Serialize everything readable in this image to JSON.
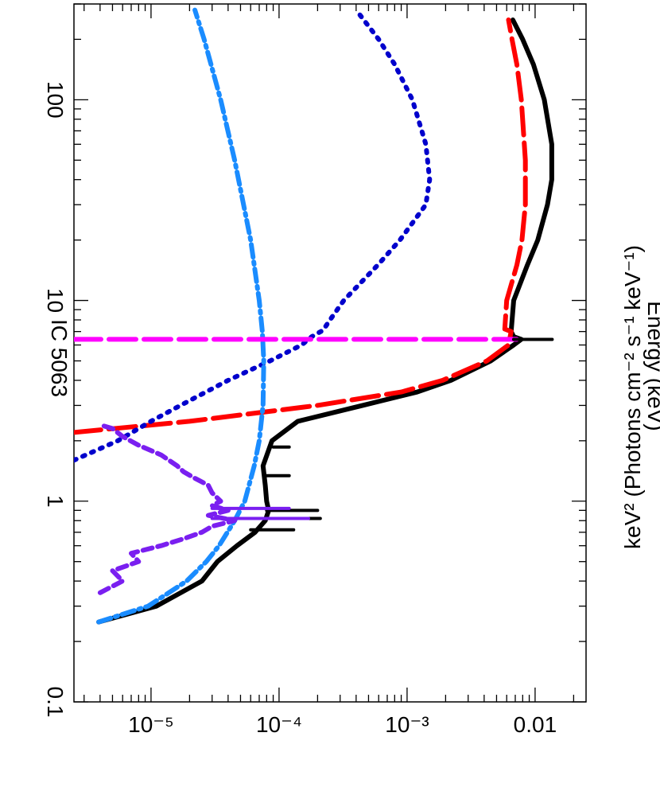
{
  "chart_data": {
    "type": "line",
    "title": "IC 5063",
    "xlabel": "Energy (keV)",
    "ylabel": "keV² (Photons cm⁻² s⁻¹ keV⁻¹)",
    "x_scale": "log",
    "y_scale": "log",
    "xlim": [
      0.1,
      300
    ],
    "ylim": [
      2.5e-06,
      0.025
    ],
    "x_ticks": [
      {
        "value": 0.1,
        "label": "0.1"
      },
      {
        "value": 1,
        "label": "1"
      },
      {
        "value": 10,
        "label": "10"
      },
      {
        "value": 100,
        "label": "100"
      }
    ],
    "y_ticks": [
      {
        "value": 1e-05,
        "label": "10⁻⁵"
      },
      {
        "value": 0.0001,
        "label": "10⁻⁴"
      },
      {
        "value": 0.001,
        "label": "10⁻³"
      },
      {
        "value": 0.01,
        "label": "0.01"
      }
    ],
    "series": [
      {
        "color": "#000000",
        "dash": "solid",
        "x": [
          0.25,
          0.3,
          0.4,
          0.5,
          0.6,
          0.7,
          0.8,
          0.9,
          1.0,
          1.2,
          1.5,
          2.0,
          2.5,
          3.0,
          3.5,
          4.0,
          5.0,
          6.0,
          6.4,
          6.6,
          7.0,
          10,
          15,
          20,
          30,
          40,
          60,
          100,
          150,
          200,
          250
        ],
        "y": [
          3.9e-06,
          1.1e-05,
          2.5e-05,
          3.3e-05,
          4.7e-05,
          6.5e-05,
          7.8e-05,
          8.3e-05,
          8e-05,
          7.8e-05,
          7.5e-05,
          8.8e-05,
          0.00014,
          0.00045,
          0.0012,
          0.0022,
          0.0045,
          0.0068,
          0.0078,
          0.0068,
          0.0065,
          0.0068,
          0.0087,
          0.0105,
          0.0125,
          0.0135,
          0.0135,
          0.0118,
          0.0097,
          0.008,
          0.0067
        ]
      },
      {
        "color": "#ff0000",
        "dash": "long-dash",
        "x": [
          2.2,
          2.5,
          3.0,
          3.5,
          4.0,
          5.0,
          6.0,
          7.0,
          7.2,
          10,
          15,
          20,
          30,
          50,
          100,
          150,
          200,
          250
        ],
        "y": [
          2.5e-06,
          2e-05,
          0.0002,
          0.0009,
          0.0019,
          0.0042,
          0.0062,
          0.0065,
          0.0058,
          0.006,
          0.0072,
          0.0079,
          0.0084,
          0.0084,
          0.0078,
          0.0072,
          0.0066,
          0.0062
        ]
      },
      {
        "color": "#0000cc",
        "dash": "dotted",
        "x": [
          1.6,
          2.0,
          2.5,
          3.0,
          4.0,
          5.0,
          6.0,
          6.6,
          7.1,
          8.0,
          10,
          15,
          20,
          30,
          40,
          60,
          100,
          150,
          200,
          280
        ],
        "y": [
          2.5e-06,
          5.5e-06,
          1e-05,
          1.7e-05,
          4e-05,
          8.5e-05,
          0.00015,
          0.00018,
          0.00022,
          0.00025,
          0.00032,
          0.00059,
          0.00088,
          0.0014,
          0.0015,
          0.0014,
          0.0011,
          0.0008,
          0.0006,
          0.0004
        ]
      },
      {
        "color": "#1a8cff",
        "dash": "dash-dot",
        "x": [
          0.25,
          0.3,
          0.4,
          0.5,
          0.6,
          0.8,
          1.0,
          1.5,
          2.0,
          3.0,
          5.0,
          7.0,
          10,
          20,
          50,
          100,
          200,
          280
        ],
        "y": [
          3.9e-06,
          9.5e-06,
          1.9e-05,
          2.7e-05,
          3.4e-05,
          4.5e-05,
          5.4e-05,
          6.4e-05,
          7e-05,
          7.5e-05,
          7.6e-05,
          7.4e-05,
          7e-05,
          6e-05,
          4.5e-05,
          3.5e-05,
          2.6e-05,
          2.2e-05
        ]
      },
      {
        "color": "#ff00ff",
        "dash": "long-dash",
        "x": [
          6.4,
          6.4
        ],
        "y": [
          2.5e-06,
          0.0072
        ]
      },
      {
        "color": "#7a1ff0",
        "dash": "dashed",
        "x": [
          0.35,
          0.4,
          0.45,
          0.5,
          0.55,
          0.6,
          0.65,
          0.7,
          0.75,
          0.8,
          0.85,
          0.9,
          0.95,
          1.0,
          1.1,
          1.2,
          1.3,
          1.4,
          1.5,
          1.7,
          1.9,
          2.1,
          2.3,
          2.4
        ],
        "y": [
          4e-06,
          6e-06,
          5e-06,
          8e-06,
          7e-06,
          1.2e-05,
          1.8e-05,
          2.5e-05,
          3e-05,
          4.5e-05,
          2.8e-05,
          4e-05,
          3e-05,
          3.5e-05,
          3e-05,
          2.8e-05,
          2.2e-05,
          1.8e-05,
          1.6e-05,
          1.2e-05,
          8e-06,
          6e-06,
          5e-06,
          4e-06
        ]
      }
    ],
    "spike_lines": [
      {
        "color": "#000000",
        "x": 6.4,
        "y_from": 0.0068,
        "y_to": 0.0136
      },
      {
        "color": "#000000",
        "x": 0.82,
        "y_from": 7e-05,
        "y_to": 0.00021
      },
      {
        "color": "#000000",
        "x": 0.9,
        "y_from": 8e-05,
        "y_to": 0.0002
      },
      {
        "color": "#000000",
        "x": 0.72,
        "y_from": 6e-05,
        "y_to": 0.00013
      },
      {
        "color": "#000000",
        "x": 1.34,
        "y_from": 7.8e-05,
        "y_to": 0.00012
      },
      {
        "color": "#000000",
        "x": 1.86,
        "y_from": 9e-05,
        "y_to": 0.00012
      },
      {
        "color": "#7a1ff0",
        "x": 0.82,
        "y_from": 3e-05,
        "y_to": 0.00017
      },
      {
        "color": "#7a1ff0",
        "x": 0.92,
        "y_from": 3e-05,
        "y_to": 0.00012
      }
    ]
  }
}
